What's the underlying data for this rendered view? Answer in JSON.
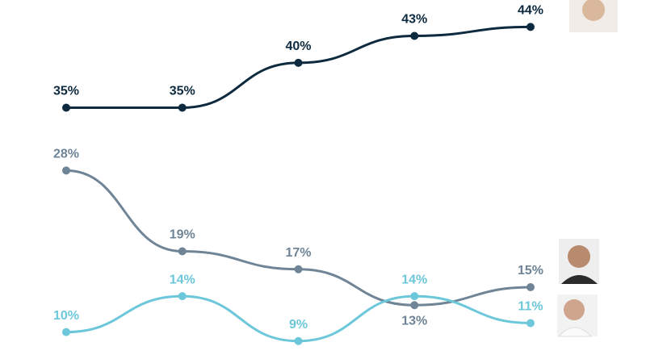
{
  "chart_data": {
    "type": "line",
    "categories": [
      null,
      null,
      null,
      null,
      null
    ],
    "ylim": [
      7,
      47
    ],
    "series": [
      {
        "color": "#0d2a3f",
        "values": [
          35,
          35,
          40,
          43,
          44
        ],
        "value_labels": [
          "35%",
          "35%",
          "40%",
          "43%",
          "44%"
        ]
      },
      {
        "color": "#6f8496",
        "values": [
          28,
          19,
          17,
          13,
          15
        ],
        "value_labels": [
          "28%",
          "19%",
          "17%",
          "13%",
          "15%"
        ]
      },
      {
        "color": "#6cc7db",
        "values": [
          10,
          14,
          9,
          14,
          11
        ],
        "value_labels": [
          "10%",
          "14%",
          "9%",
          "14%",
          "11%"
        ]
      }
    ]
  }
}
